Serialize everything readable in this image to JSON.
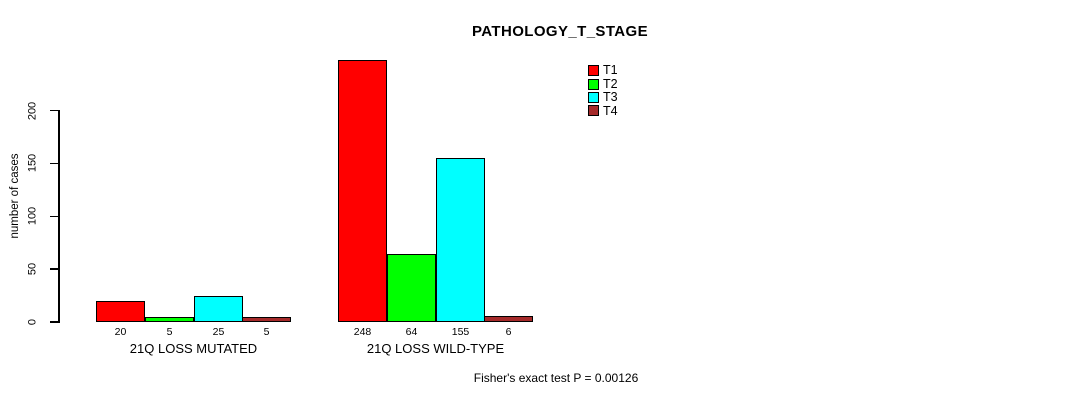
{
  "chart_data": {
    "type": "bar",
    "title": "PATHOLOGY_T_STAGE",
    "xlabel": "",
    "ylabel": "number of cases",
    "ylim": [
      0,
      200
    ],
    "yticks": [
      0,
      50,
      100,
      150,
      200
    ],
    "grid": false,
    "legend_position": "top-right",
    "categories": [
      "21Q LOSS MUTATED",
      "21Q LOSS WILD-TYPE"
    ],
    "series": [
      {
        "name": "T1",
        "color": "#ff0000",
        "values": [
          20,
          248
        ]
      },
      {
        "name": "T2",
        "color": "#00ff00",
        "values": [
          5,
          64
        ]
      },
      {
        "name": "T3",
        "color": "#00ffff",
        "values": [
          25,
          155
        ]
      },
      {
        "name": "T4",
        "color": "#a52a2a",
        "values": [
          5,
          6
        ]
      }
    ],
    "bar_value_labels": [
      [
        "20",
        "5",
        "25",
        "5"
      ],
      [
        "248",
        "64",
        "155",
        "6"
      ]
    ],
    "annotation": "Fisher's exact test P = 0.00126",
    "colors": {
      "axis": "#000000",
      "bar_border": "#000000",
      "background": "#ffffff",
      "text": "#000000"
    }
  }
}
